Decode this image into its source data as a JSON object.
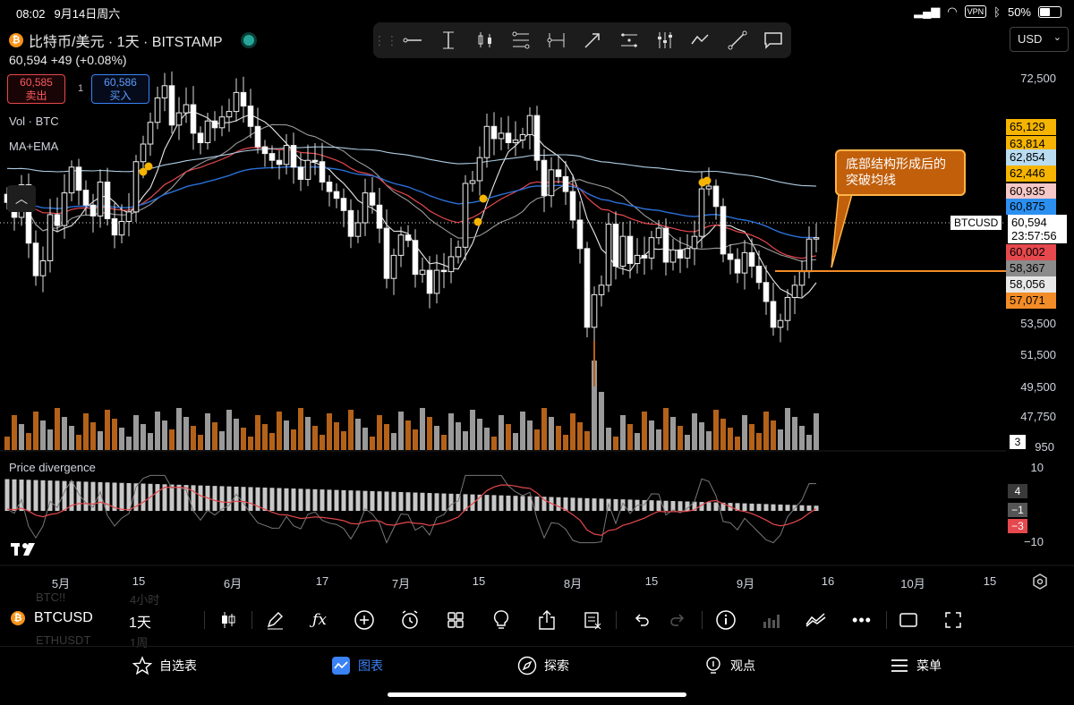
{
  "status_bar": {
    "time": "08:02",
    "date": "9月14日周六",
    "vpn": "VPN",
    "battery": "50%"
  },
  "symbol": {
    "title": "比特币/美元 · 1天 · BITSTAMP",
    "coin_glyph": "₿",
    "last_price": "60,594",
    "change": "+49 (+0.08%)"
  },
  "trade": {
    "sell_price": "60,585",
    "sell_label": "卖出",
    "spread": "1",
    "buy_price": "60,586",
    "buy_label": "买入"
  },
  "indicators": {
    "volume": "Vol · BTC",
    "ma": "MA+EMA",
    "divergence": "Price divergence"
  },
  "currency": "USD",
  "drawing_tools": [
    "horizontal-line-icon",
    "vertical-line-icon",
    "candles-icon",
    "fib-icon",
    "date-range-icon",
    "arrow-icon",
    "channel-icon",
    "parallel-icon",
    "trend-icon",
    "ray-icon",
    "comment-icon"
  ],
  "price_axis": [
    "72,500",
    "53,500",
    "51,500",
    "49,500",
    "47,750"
  ],
  "price_tags": [
    {
      "text": "65,129",
      "color": "#f5b400"
    },
    {
      "text": "63,814",
      "color": "#f5b400"
    },
    {
      "text": "62,854",
      "color": "#b9dcf1"
    },
    {
      "text": "62,446",
      "color": "#f5b400"
    },
    {
      "text": "60,935",
      "color": "#f6c7c7"
    },
    {
      "text": "60,875",
      "color": "#2b8ff0"
    },
    {
      "text": "60,002",
      "color": "#e5484d"
    },
    {
      "text": "58,367",
      "color": "#8b8b8b"
    },
    {
      "text": "58,056",
      "color": "#e8e8e8"
    },
    {
      "text": "57,071",
      "color": "#f28c28"
    }
  ],
  "current": {
    "symbol": "BTCUSD",
    "price": "60,594",
    "countdown": "23:57:56"
  },
  "volume_tag": "3",
  "volume_axis_partial": "950",
  "annotation": "底部结构形成后的突破均线",
  "oscillator_axis": [
    "10",
    "−10"
  ],
  "oscillator_tags": [
    {
      "text": "4",
      "color": "#3a3a3a"
    },
    {
      "text": "−1",
      "color": "#555"
    },
    {
      "text": "−3",
      "color": "#e5484d"
    }
  ],
  "time_axis": [
    "5月",
    "15",
    "6月",
    "17",
    "7月",
    "15",
    "8月",
    "15",
    "9月",
    "16",
    "10月",
    "15"
  ],
  "bottom_toolbar": {
    "symbol": "BTCUSD",
    "interval": "1天",
    "ghost_rows": [
      "BTC!!",
      "4小时",
      "ETHUSDT",
      "1周"
    ]
  },
  "tabs": [
    {
      "label": "自选表",
      "icon": "star-icon"
    },
    {
      "label": "图表",
      "icon": "chart-icon",
      "active": true
    },
    {
      "label": "探索",
      "icon": "compass-icon"
    },
    {
      "label": "观点",
      "icon": "bulb-icon"
    },
    {
      "label": "菜单",
      "icon": "menu-icon"
    }
  ],
  "chart_data": {
    "type": "candlestick",
    "symbol": "BTCUSD",
    "interval": "1D",
    "close": [
      63200,
      62100,
      64500,
      60200,
      57800,
      58900,
      62300,
      61500,
      63900,
      65800,
      64100,
      63000,
      62200,
      64700,
      62000,
      60800,
      61800,
      62500,
      66200,
      67500,
      69100,
      70900,
      71800,
      68900,
      69800,
      70400,
      68300,
      67600,
      69200,
      68700,
      69500,
      69900,
      71300,
      70300,
      68800,
      67300,
      66800,
      66300,
      66000,
      67400,
      65800,
      64900,
      66300,
      66200,
      64700,
      64000,
      63500,
      62600,
      60700,
      61700,
      63900,
      63000,
      61300,
      57600,
      59300,
      60800,
      60400,
      57900,
      58200,
      56500,
      58200,
      58100,
      59200,
      59900,
      64600,
      64800,
      66500,
      68800,
      67900,
      68300,
      67600,
      67800,
      68200,
      69600,
      66300,
      63700,
      65600,
      65100,
      64000,
      61900,
      59800,
      54000,
      56400,
      57100,
      61600,
      58500,
      60700,
      58700,
      59300,
      59100,
      60600,
      61300,
      58800,
      59700,
      59100,
      59800,
      60700,
      64200,
      64400,
      62900,
      59400,
      59000,
      58000,
      59500,
      58500,
      57300,
      55900,
      54000,
      54500,
      56200,
      57100,
      58100,
      60500,
      60600
    ],
    "price_range": [
      47000,
      73500
    ],
    "series": [
      {
        "name": "MA short",
        "color": "#ffffff"
      },
      {
        "name": "MA",
        "color": "#b0b0b0"
      },
      {
        "name": "EMA",
        "color": "#ff6b6b"
      },
      {
        "name": "EMA long",
        "color": "#2b8ff0"
      },
      {
        "name": "EMA 200",
        "color": "#b9dcf1"
      }
    ],
    "oscillator_range": [
      -12,
      12
    ],
    "breakout_level": 57071
  }
}
